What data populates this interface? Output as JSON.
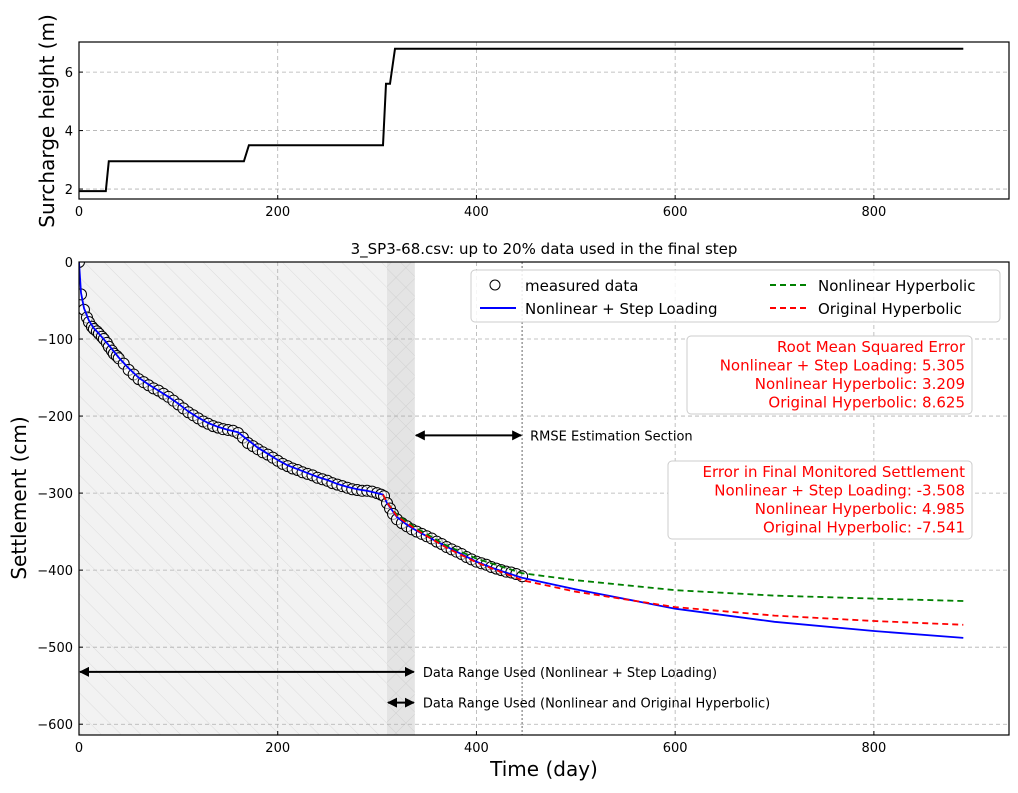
{
  "chart_data": [
    {
      "type": "line",
      "ylabel": "Surcharge height (m)",
      "xlabel": "",
      "xlim": [
        0,
        936
      ],
      "ylim": [
        1.66,
        7.03
      ],
      "xticks": [
        0,
        200,
        400,
        600,
        800
      ],
      "yticks": [
        2,
        4,
        6
      ],
      "grid": true,
      "series": [
        {
          "color": "#000000",
          "x": [
            0,
            27,
            30,
            166,
            171,
            306,
            309,
            313,
            318,
            890
          ],
          "y": [
            1.93,
            1.93,
            2.95,
            2.95,
            3.5,
            3.5,
            5.6,
            5.6,
            6.8,
            6.8
          ]
        }
      ]
    },
    {
      "type": "line",
      "title": "3_SP3-68.csv: up to 20% data used in the final step",
      "xlabel": "Time (day)",
      "ylabel": "Settlement (cm)",
      "xlim": [
        0,
        936
      ],
      "ylim": [
        -614,
        0
      ],
      "xticks": [
        0,
        200,
        400,
        600,
        800
      ],
      "yticks": [
        0,
        -100,
        -200,
        -300,
        -400,
        -500,
        -600
      ],
      "grid": true,
      "legend_placement": "top-right",
      "series": [
        {
          "name": "measured data",
          "style": "markers",
          "color": "#000000",
          "x": [
            0,
            2,
            5,
            8,
            10,
            13,
            15,
            18,
            20,
            23,
            25,
            28,
            30,
            33,
            35,
            38,
            40,
            45,
            50,
            55,
            60,
            65,
            70,
            75,
            80,
            85,
            90,
            95,
            100,
            105,
            110,
            115,
            120,
            125,
            130,
            135,
            140,
            145,
            150,
            155,
            160,
            165,
            170,
            175,
            180,
            185,
            190,
            195,
            200,
            205,
            210,
            215,
            220,
            225,
            230,
            235,
            240,
            245,
            250,
            255,
            260,
            265,
            270,
            275,
            280,
            285,
            290,
            295,
            300,
            304,
            307,
            310,
            313,
            316,
            320,
            325,
            330,
            335,
            340,
            345,
            350,
            355,
            360,
            365,
            370,
            375,
            380,
            385,
            390,
            395,
            400,
            405,
            410,
            415,
            420,
            425,
            430,
            435,
            440,
            446
          ],
          "y": [
            0,
            -42,
            -62,
            -72,
            -78,
            -84,
            -87,
            -90,
            -93,
            -97,
            -100,
            -105,
            -110,
            -115,
            -119,
            -122,
            -125,
            -132,
            -140,
            -146,
            -152,
            -156,
            -160,
            -164,
            -167,
            -171,
            -175,
            -180,
            -185,
            -190,
            -195,
            -199,
            -203,
            -207,
            -210,
            -213,
            -215,
            -217,
            -218,
            -219,
            -222,
            -228,
            -235,
            -239,
            -243,
            -247,
            -250,
            -254,
            -258,
            -262,
            -265,
            -268,
            -270,
            -273,
            -275,
            -277,
            -280,
            -282,
            -284,
            -287,
            -289,
            -291,
            -293,
            -295,
            -296,
            -297,
            -297,
            -298,
            -300,
            -302,
            -304,
            -313,
            -320,
            -327,
            -334,
            -339,
            -343,
            -347,
            -350,
            -353,
            -356,
            -359,
            -363,
            -366,
            -370,
            -373,
            -376,
            -379,
            -383,
            -386,
            -389,
            -391,
            -393,
            -396,
            -398,
            -400,
            -402,
            -403,
            -405,
            -408
          ]
        },
        {
          "name": "Nonlinear + Step Loading",
          "style": "solid",
          "color": "#0000ff",
          "x": [
            0,
            2,
            5,
            10,
            15,
            20,
            30,
            40,
            50,
            60,
            70,
            80,
            90,
            100,
            110,
            120,
            130,
            140,
            150,
            160,
            170,
            180,
            190,
            200,
            210,
            220,
            230,
            240,
            250,
            260,
            270,
            280,
            290,
            300,
            306,
            310,
            315,
            320,
            330,
            340,
            350,
            360,
            380,
            400,
            420,
            446,
            500,
            600,
            700,
            800,
            890
          ],
          "y": [
            0,
            -40,
            -60,
            -76,
            -86,
            -93,
            -108,
            -124,
            -138,
            -150,
            -159,
            -167,
            -175,
            -184,
            -194,
            -202,
            -209,
            -214,
            -218,
            -221,
            -231,
            -241,
            -249,
            -257,
            -264,
            -269,
            -274,
            -279,
            -283,
            -288,
            -292,
            -295,
            -297,
            -300,
            -302,
            -313,
            -322,
            -331,
            -341,
            -349,
            -356,
            -363,
            -376,
            -389,
            -399,
            -410,
            -425,
            -450,
            -467,
            -479,
            -488
          ]
        },
        {
          "name": "Nonlinear Hyperbolic",
          "style": "dashed",
          "color": "#008000",
          "x": [
            306,
            310,
            320,
            340,
            370,
            400,
            446,
            500,
            600,
            700,
            800,
            890
          ],
          "y": [
            -302,
            -312,
            -328,
            -346,
            -368,
            -385,
            -404,
            -413,
            -426,
            -433,
            -437,
            -440
          ]
        },
        {
          "name": "Original Hyperbolic",
          "style": "dashed",
          "color": "#ff0000",
          "x": [
            306,
            310,
            320,
            340,
            370,
            400,
            446,
            500,
            600,
            700,
            800,
            890
          ],
          "y": [
            -302,
            -312,
            -330,
            -348,
            -371,
            -390,
            -413,
            -428,
            -448,
            -459,
            -466,
            -471
          ]
        }
      ],
      "shaded_regions": [
        {
          "x": [
            0,
            310
          ],
          "color": "#f2f2f2",
          "hatch": "diagonal"
        },
        {
          "x": [
            310,
            338
          ],
          "color": "#e4e4e4",
          "hatch": "cross"
        }
      ],
      "vline": 446,
      "annotations": [
        {
          "text": "RMSE Estimation Section",
          "x1": 338,
          "x2": 446,
          "y": -225
        },
        {
          "text": "Data Range Used (Nonlinear + Step Loading)",
          "x1": 0,
          "x2": 338,
          "y": -532
        },
        {
          "text": "Data Range Used (Nonlinear and Original Hyperbolic)",
          "x1": 310,
          "x2": 338,
          "y": -572
        }
      ],
      "rmse_box": {
        "color": "#ff0000",
        "lines": [
          "Root Mean Squared Error",
          "Nonlinear + Step Loading: 5.305",
          "Nonlinear Hyperbolic: 3.209",
          "Original Hyperbolic: 8.625"
        ]
      },
      "error_box": {
        "color": "#ff0000",
        "lines": [
          "Error in Final Monitored Settlement",
          "Nonlinear + Step Loading: -3.508",
          "Nonlinear Hyperbolic: 4.985",
          "Original Hyperbolic: -7.541"
        ]
      }
    }
  ]
}
